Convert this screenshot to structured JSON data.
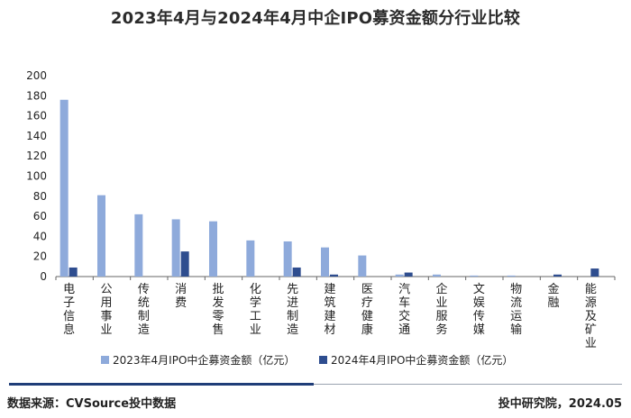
{
  "title": "2023年4月与2024年4月中企IPO募资金额分行业比较",
  "footer": {
    "source": "数据来源：CVSource投中数据",
    "credit": "投中研究院，2024.05"
  },
  "colors": {
    "series_2023": "#8eaadb",
    "series_2024": "#2e4d8f",
    "axis": "#666666",
    "text": "#222222"
  },
  "chart_data": {
    "type": "bar",
    "categories": [
      "电子信息",
      "公用事业",
      "传统制造",
      "消费",
      "批发零售",
      "化学工业",
      "先进制造",
      "建筑建材",
      "医疗健康",
      "汽车交通",
      "企业服务",
      "文娱传媒",
      "物流运输",
      "金融",
      "能源及矿业"
    ],
    "series": [
      {
        "name": "2023年4月IPO中企募资金额（亿元）",
        "values": [
          176,
          81,
          62,
          57,
          55,
          36,
          35,
          29,
          21,
          2,
          2,
          1,
          1,
          0,
          0
        ]
      },
      {
        "name": "2024年4月IPO中企募资金额（亿元）",
        "values": [
          9,
          0,
          0,
          25,
          0,
          0,
          9,
          2,
          0,
          4,
          0,
          0,
          0,
          2,
          8
        ]
      }
    ],
    "ylim": [
      0,
      200
    ],
    "yticks": [
      "0",
      "20",
      "40",
      "60",
      "80",
      "100",
      "120",
      "140",
      "160",
      "180",
      "200"
    ],
    "grid": false,
    "legend": "bottom"
  }
}
